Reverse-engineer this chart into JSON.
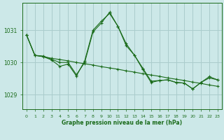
{
  "title": "Graphe pression niveau de la mer (hPa)",
  "background_color": "#cce8e8",
  "grid_color": "#aacccc",
  "line_color": "#1a6b1a",
  "ylabel_ticks": [
    1029,
    1030,
    1031
  ],
  "xlim": [
    -0.5,
    23.5
  ],
  "ylim": [
    1028.55,
    1031.85
  ],
  "hours": [
    0,
    1,
    2,
    3,
    4,
    5,
    6,
    7,
    8,
    9,
    10,
    11,
    12,
    13,
    14,
    15,
    16,
    17,
    18,
    19,
    20,
    21,
    22,
    23
  ],
  "series1": [
    1030.85,
    1030.22,
    1030.18,
    1030.13,
    1030.09,
    1030.05,
    1030.0,
    1029.96,
    1029.92,
    1029.87,
    1029.83,
    1029.79,
    1029.74,
    1029.7,
    1029.65,
    1029.61,
    1029.57,
    1029.52,
    1029.48,
    1029.44,
    1029.39,
    1029.35,
    1029.3,
    1029.26
  ],
  "series2": [
    1030.85,
    1030.22,
    1030.18,
    1030.08,
    1029.88,
    1029.95,
    1029.58,
    1030.05,
    1031.0,
    1031.28,
    1031.52,
    1031.12,
    1030.58,
    1030.22,
    1029.82,
    1029.42,
    1029.44,
    1029.46,
    1029.38,
    1029.36,
    1029.18,
    1029.38,
    1029.52,
    1029.46
  ],
  "series3": [
    1030.85,
    1030.22,
    1030.2,
    1030.1,
    1030.0,
    1030.0,
    1029.62,
    1030.0,
    1030.95,
    1031.22,
    1031.56,
    1031.12,
    1030.52,
    1030.22,
    1029.78,
    1029.38,
    1029.44,
    1029.46,
    1029.38,
    1029.36,
    1029.18,
    1029.38,
    1029.56,
    1029.46
  ]
}
